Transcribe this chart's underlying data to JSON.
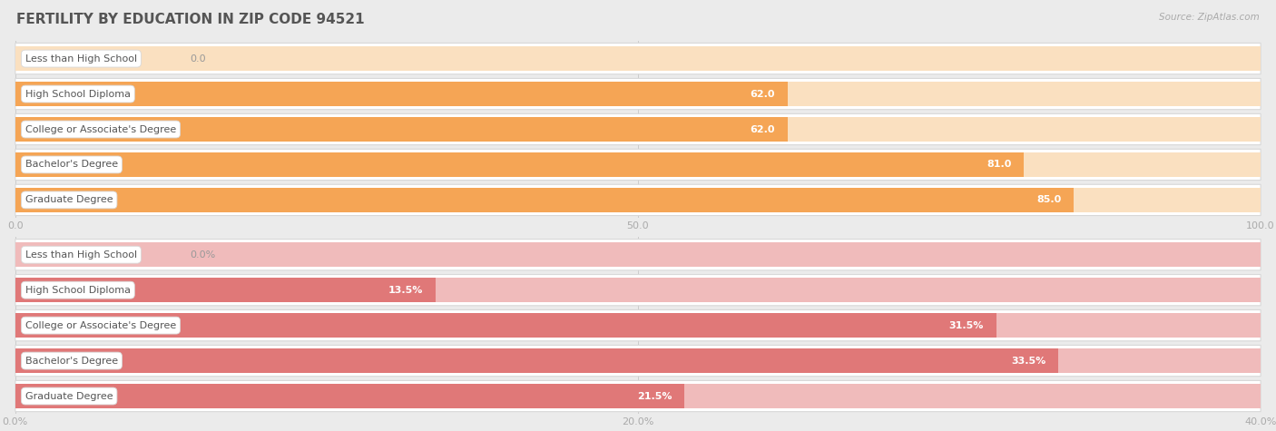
{
  "title": "FERTILITY BY EDUCATION IN ZIP CODE 94521",
  "source": "Source: ZipAtlas.com",
  "chart1": {
    "categories": [
      "Less than High School",
      "High School Diploma",
      "College or Associate's Degree",
      "Bachelor's Degree",
      "Graduate Degree"
    ],
    "values": [
      0.0,
      62.0,
      62.0,
      81.0,
      85.0
    ],
    "xlim": [
      0,
      100
    ],
    "xticks": [
      0.0,
      50.0,
      100.0
    ],
    "xtick_labels": [
      "0.0",
      "50.0",
      "100.0"
    ],
    "bar_color": "#F5A555",
    "bar_bg_color": "#FAE0C0",
    "value_color_nonzero": "#ffffff",
    "value_color_zero": "#999999"
  },
  "chart2": {
    "categories": [
      "Less than High School",
      "High School Diploma",
      "College or Associate's Degree",
      "Bachelor's Degree",
      "Graduate Degree"
    ],
    "values": [
      0.0,
      13.5,
      31.5,
      33.5,
      21.5
    ],
    "xlim": [
      0,
      40
    ],
    "xticks": [
      0.0,
      20.0,
      40.0
    ],
    "xtick_labels": [
      "0.0%",
      "20.0%",
      "40.0%"
    ],
    "bar_color": "#E07878",
    "bar_bg_color": "#F0BBBB",
    "value_color_nonzero": "#ffffff",
    "value_color_zero": "#999999"
  },
  "bg_color": "#ebebeb",
  "row_bg_color": "#ffffff",
  "row_border_color": "#d8d8d8",
  "title_color": "#555555",
  "source_color": "#aaaaaa",
  "label_color": "#555555",
  "tick_color": "#aaaaaa",
  "title_fontsize": 11,
  "label_fontsize": 8,
  "value_fontsize": 8,
  "tick_fontsize": 8
}
